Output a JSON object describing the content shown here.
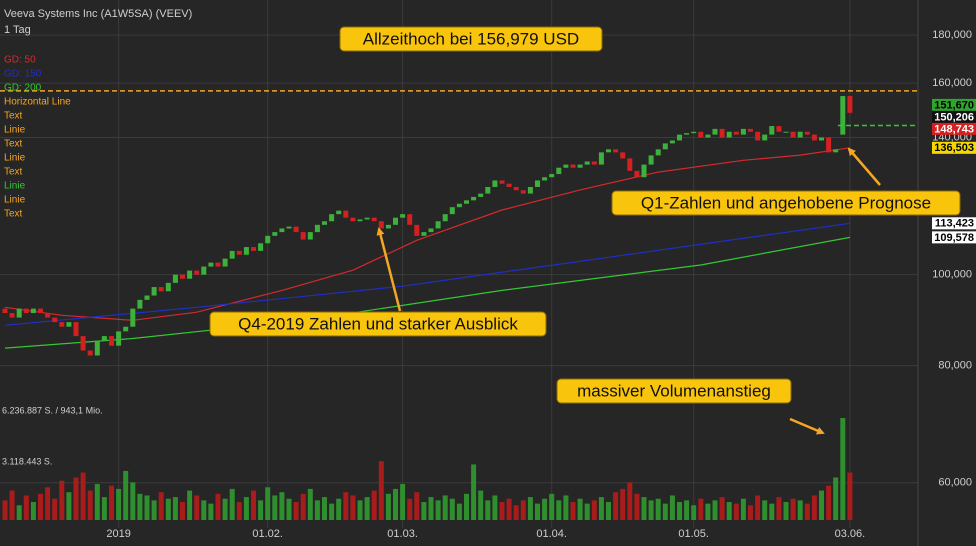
{
  "chart_data": {
    "type": "candlestick",
    "title": "Veeva Systems Inc (A1W5SA) (VEEV)",
    "interval": "1 Tag",
    "log_scale": true,
    "grid": true,
    "categories": [
      null,
      null,
      null,
      null,
      null,
      null,
      null,
      null,
      null,
      null,
      null,
      null,
      null,
      null,
      null,
      null,
      "2019",
      null,
      null,
      null,
      null,
      null,
      null,
      null,
      null,
      null,
      null,
      null,
      null,
      null,
      null,
      null,
      null,
      null,
      null,
      null,
      null,
      "01.02.",
      null,
      null,
      null,
      null,
      null,
      null,
      null,
      null,
      null,
      null,
      null,
      null,
      null,
      null,
      null,
      null,
      null,
      null,
      "01.03.",
      null,
      null,
      null,
      null,
      null,
      null,
      null,
      null,
      null,
      null,
      null,
      null,
      null,
      null,
      null,
      null,
      null,
      null,
      null,
      null,
      "01.04.",
      null,
      null,
      null,
      null,
      null,
      null,
      null,
      null,
      null,
      null,
      null,
      null,
      null,
      null,
      null,
      null,
      null,
      null,
      null,
      "01.05.",
      null,
      null,
      null,
      null,
      null,
      null,
      null,
      null,
      null,
      null,
      null,
      null,
      null,
      null,
      null,
      null,
      null,
      null,
      null,
      null,
      null,
      "03.06."
    ],
    "candles": {
      "up_color": "#3cb13c",
      "down_color": "#d42020",
      "open": [
        92,
        91,
        90,
        92,
        91,
        92,
        91,
        90,
        89,
        88,
        89,
        86,
        83,
        82,
        85,
        86,
        84,
        87,
        88,
        92,
        94,
        95,
        97,
        96,
        98,
        100,
        99,
        101,
        100,
        102,
        103,
        102,
        104,
        106,
        105,
        107,
        106,
        108,
        110,
        111,
        112,
        112.5,
        111,
        109,
        111,
        113,
        114,
        116,
        117,
        115,
        114,
        114.5,
        115,
        114,
        112,
        113,
        115,
        116,
        113,
        110,
        111,
        112,
        114,
        116,
        118,
        119,
        120,
        121,
        122,
        124,
        126,
        125,
        124,
        123,
        122,
        124,
        126,
        127,
        128,
        130,
        131,
        130,
        131,
        132,
        131,
        135,
        136,
        135,
        133,
        129,
        127,
        131,
        134,
        136,
        138,
        139,
        141,
        141.5,
        142,
        140,
        141,
        143,
        140,
        142,
        141,
        143,
        142,
        139,
        141,
        144,
        142,
        142,
        140,
        142,
        141,
        139,
        140,
        135,
        141,
        155
      ],
      "close": [
        91,
        90,
        92,
        91,
        92,
        91,
        90,
        89,
        88,
        89,
        86,
        83,
        82,
        85,
        86,
        84,
        87,
        88,
        92,
        94,
        95,
        97,
        96,
        98,
        100,
        99,
        101,
        100,
        102,
        103,
        102,
        104,
        106,
        105,
        107,
        106,
        108,
        110,
        111,
        112,
        112.5,
        111,
        109,
        111,
        113,
        114,
        116,
        117,
        115,
        114,
        114.5,
        115,
        114,
        112,
        113,
        115,
        116,
        113,
        110,
        111,
        112,
        114,
        116,
        118,
        119,
        120,
        121,
        122,
        124,
        126,
        125,
        124,
        123,
        122,
        124,
        126,
        127,
        128,
        130,
        131,
        130,
        131,
        132,
        131,
        135,
        136,
        135,
        133,
        129,
        127,
        131,
        134,
        136,
        138,
        139,
        141,
        141.5,
        142,
        140,
        141,
        143,
        140,
        142,
        141,
        143,
        142,
        139,
        141,
        144,
        142,
        142,
        140,
        142,
        141,
        139,
        140,
        135,
        136,
        155,
        148.743
      ]
    },
    "volume": [
      1200000,
      1800000,
      900000,
      1500000,
      1100000,
      1600000,
      2000000,
      1300000,
      2400000,
      1700000,
      2600000,
      2900000,
      1800000,
      2200000,
      1400000,
      2100000,
      1900000,
      3000000,
      2300000,
      1600000,
      1500000,
      1200000,
      1700000,
      1300000,
      1400000,
      1100000,
      1800000,
      1500000,
      1200000,
      1000000,
      1600000,
      1300000,
      1900000,
      1100000,
      1400000,
      1800000,
      1200000,
      2000000,
      1500000,
      1700000,
      1300000,
      1100000,
      1600000,
      1900000,
      1200000,
      1400000,
      1000000,
      1300000,
      1700000,
      1500000,
      1200000,
      1400000,
      1800000,
      3600000,
      1600000,
      1900000,
      2200000,
      1300000,
      1700000,
      1100000,
      1400000,
      1200000,
      1500000,
      1300000,
      1000000,
      1600000,
      3400000,
      1800000,
      1200000,
      1500000,
      1100000,
      1300000,
      900000,
      1200000,
      1400000,
      1000000,
      1300000,
      1600000,
      1200000,
      1500000,
      1100000,
      1300000,
      1000000,
      1200000,
      1400000,
      1100000,
      1700000,
      1900000,
      2300000,
      1600000,
      1400000,
      1200000,
      1300000,
      1000000,
      1500000,
      1100000,
      1200000,
      900000,
      1300000,
      1000000,
      1200000,
      1400000,
      1100000,
      1000000,
      1300000,
      900000,
      1500000,
      1200000,
      1000000,
      1400000,
      1100000,
      1300000,
      1200000,
      1000000,
      1500000,
      1800000,
      2100000,
      2600000,
      6236887,
      2900000
    ],
    "vlim": [
      0,
      6236887
    ],
    "vticks": [
      {
        "value": 6236887,
        "label": "6.236.887 S. / 943,1 Mio."
      },
      {
        "value": 3118443,
        "label": "3.118.443 S."
      }
    ],
    "series": [
      {
        "name": "GD: 50",
        "color": "#d42a2a",
        "x": [
          0,
          8,
          18,
          27,
          39,
          49,
          58,
          70,
          81,
          92,
          104,
          112,
          119
        ],
        "values": [
          92.3,
          90.5,
          89.4,
          91.2,
          96.2,
          101.1,
          108.8,
          117.2,
          123.1,
          128.6,
          132.4,
          134.1,
          136.503
        ]
      },
      {
        "name": "GD: 150",
        "color": "#1f2fc8",
        "x": [
          0,
          27,
          56,
          84,
          119
        ],
        "values": [
          88.3,
          92.3,
          97.2,
          104.1,
          113.423
        ]
      },
      {
        "name": "GD: 200",
        "color": "#34c834",
        "x": [
          0,
          18,
          42,
          70,
          98,
          119
        ],
        "values": [
          83.5,
          85.5,
          89.4,
          96.2,
          102.4,
          109.578
        ]
      }
    ],
    "drawings": [
      {
        "name": "Horizontal Line",
        "color": "#f5a623"
      },
      {
        "name": "Text",
        "color": "#f5a623"
      },
      {
        "name": "Linie",
        "color": "#f5a623"
      },
      {
        "name": "Text",
        "color": "#f5a623"
      },
      {
        "name": "Linie",
        "color": "#f5a623"
      },
      {
        "name": "Text",
        "color": "#f5a623"
      },
      {
        "name": "Linie",
        "color": "#34c834"
      },
      {
        "name": "Linie",
        "color": "#f5a623"
      },
      {
        "name": "Text",
        "color": "#f5a623"
      }
    ],
    "levels": [
      {
        "value": 156.979,
        "color": "#f5a623"
      },
      {
        "value": 144.2,
        "color": "#34c834"
      }
    ],
    "ylim": [
      53.7,
      196.2
    ],
    "yticks": [
      {
        "value": 180,
        "label": "180,000"
      },
      {
        "value": 160,
        "label": "160,000"
      },
      {
        "value": 140,
        "label": "140,000"
      },
      {
        "value": 100,
        "label": "100,000"
      },
      {
        "value": 80,
        "label": "80,000"
      },
      {
        "value": 60,
        "label": "60,000"
      }
    ],
    "price_labels": [
      {
        "value": 151.67,
        "label": "151,670",
        "bg": "#2fa52f",
        "fg": "#000000"
      },
      {
        "value": 150.206,
        "label": "150,206",
        "bg": "#111111",
        "fg": "#ffffff"
      },
      {
        "value": 148.743,
        "label": "148,743",
        "bg": "#d42020",
        "fg": "#ffffff"
      },
      {
        "value": 136.503,
        "label": "136,503",
        "bg": "#f5d800",
        "fg": "#000000"
      },
      {
        "value": 113.423,
        "label": "113,423",
        "bg": "#ffffff",
        "fg": "#000000"
      },
      {
        "value": 109.578,
        "label": "109,578",
        "bg": "#ffffff",
        "fg": "#000000"
      }
    ],
    "annotations": [
      {
        "text": "Allzeithoch bei 156,979 USD"
      },
      {
        "text": "Q1-Zahlen und angehobene Prognose"
      },
      {
        "text": "Q4-2019 Zahlen und starker Ausblick"
      },
      {
        "text": "massiver Volumenanstieg"
      }
    ]
  }
}
